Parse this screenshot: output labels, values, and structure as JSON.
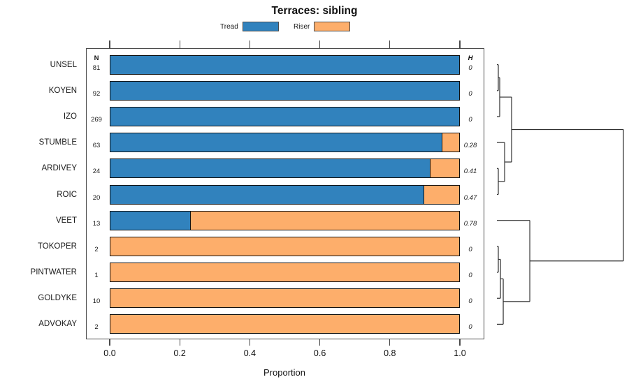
{
  "chart_data": {
    "type": "bar",
    "orientation": "horizontal",
    "stacked": true,
    "title": "Terraces: sibling",
    "xlabel": "Proportion",
    "xlim": [
      0,
      1
    ],
    "x_ticks": [
      "0.0",
      "0.2",
      "0.4",
      "0.6",
      "0.8",
      "1.0"
    ],
    "x_tick_values": [
      0,
      0.2,
      0.4,
      0.6,
      0.8,
      1.0
    ],
    "grid": false,
    "legend_position": "top-center",
    "categories": [
      "UNSEL",
      "KOYEN",
      "IZO",
      "STUMBLE",
      "ARDIVEY",
      "ROIC",
      "VEET",
      "TOKOPER",
      "PINTWATER",
      "GOLDYKE",
      "ADVOKAY"
    ],
    "series": [
      {
        "name": "Tread",
        "color": "#3182bd",
        "values": [
          1,
          1,
          1,
          0.952,
          0.917,
          0.9,
          0.231,
          0,
          0,
          0,
          0
        ]
      },
      {
        "name": "Riser",
        "color": "#fdae6b",
        "values": [
          0,
          0,
          0,
          0.048,
          0.083,
          0.1,
          0.769,
          1,
          1,
          1,
          1
        ]
      }
    ],
    "n_column": {
      "header": "N",
      "values": [
        81,
        92,
        269,
        63,
        24,
        20,
        13,
        2,
        1,
        10,
        2
      ]
    },
    "h_column": {
      "header": "H",
      "values": [
        "0",
        "0",
        "0",
        "0.28",
        "0.41",
        "0.47",
        "0.78",
        "0",
        "0",
        "0",
        "0"
      ]
    },
    "dendrogram": {
      "side": "right",
      "heights_normalized_to_root": true,
      "tree": {
        "h": 1.0,
        "c": [
          {
            "h": 0.116,
            "c": [
              {
                "h": 0.022,
                "c": [
                  {
                    "h": 0.011,
                    "c": [
                      {
                        "leaf": "UNSEL"
                      },
                      {
                        "leaf": "KOYEN"
                      }
                    ]
                  },
                  {
                    "leaf": "IZO"
                  }
                ]
              },
              {
                "h": 0.061,
                "c": [
                  {
                    "leaf": "STUMBLE"
                  },
                  {
                    "h": 0.011,
                    "c": [
                      {
                        "leaf": "ARDIVEY"
                      },
                      {
                        "leaf": "ROIC"
                      }
                    ]
                  }
                ]
              }
            ]
          },
          {
            "h": 0.26,
            "c": [
              {
                "leaf": "VEET"
              },
              {
                "h": 0.05,
                "c": [
                  {
                    "h": 0.028,
                    "c": [
                      {
                        "h": 0.011,
                        "c": [
                          {
                            "leaf": "TOKOPER"
                          },
                          {
                            "leaf": "PINTWATER"
                          }
                        ]
                      },
                      {
                        "leaf": "GOLDYKE"
                      }
                    ]
                  },
                  {
                    "leaf": "ADVOKAY"
                  }
                ]
              }
            ]
          }
        ]
      }
    }
  },
  "colors": {
    "tread": "#3182bd",
    "riser": "#fdae6b",
    "bar_border": "#111111",
    "frame_border": "#4a4a4a",
    "dendrogram_line": "#2f2f2f",
    "text": "#111111"
  }
}
